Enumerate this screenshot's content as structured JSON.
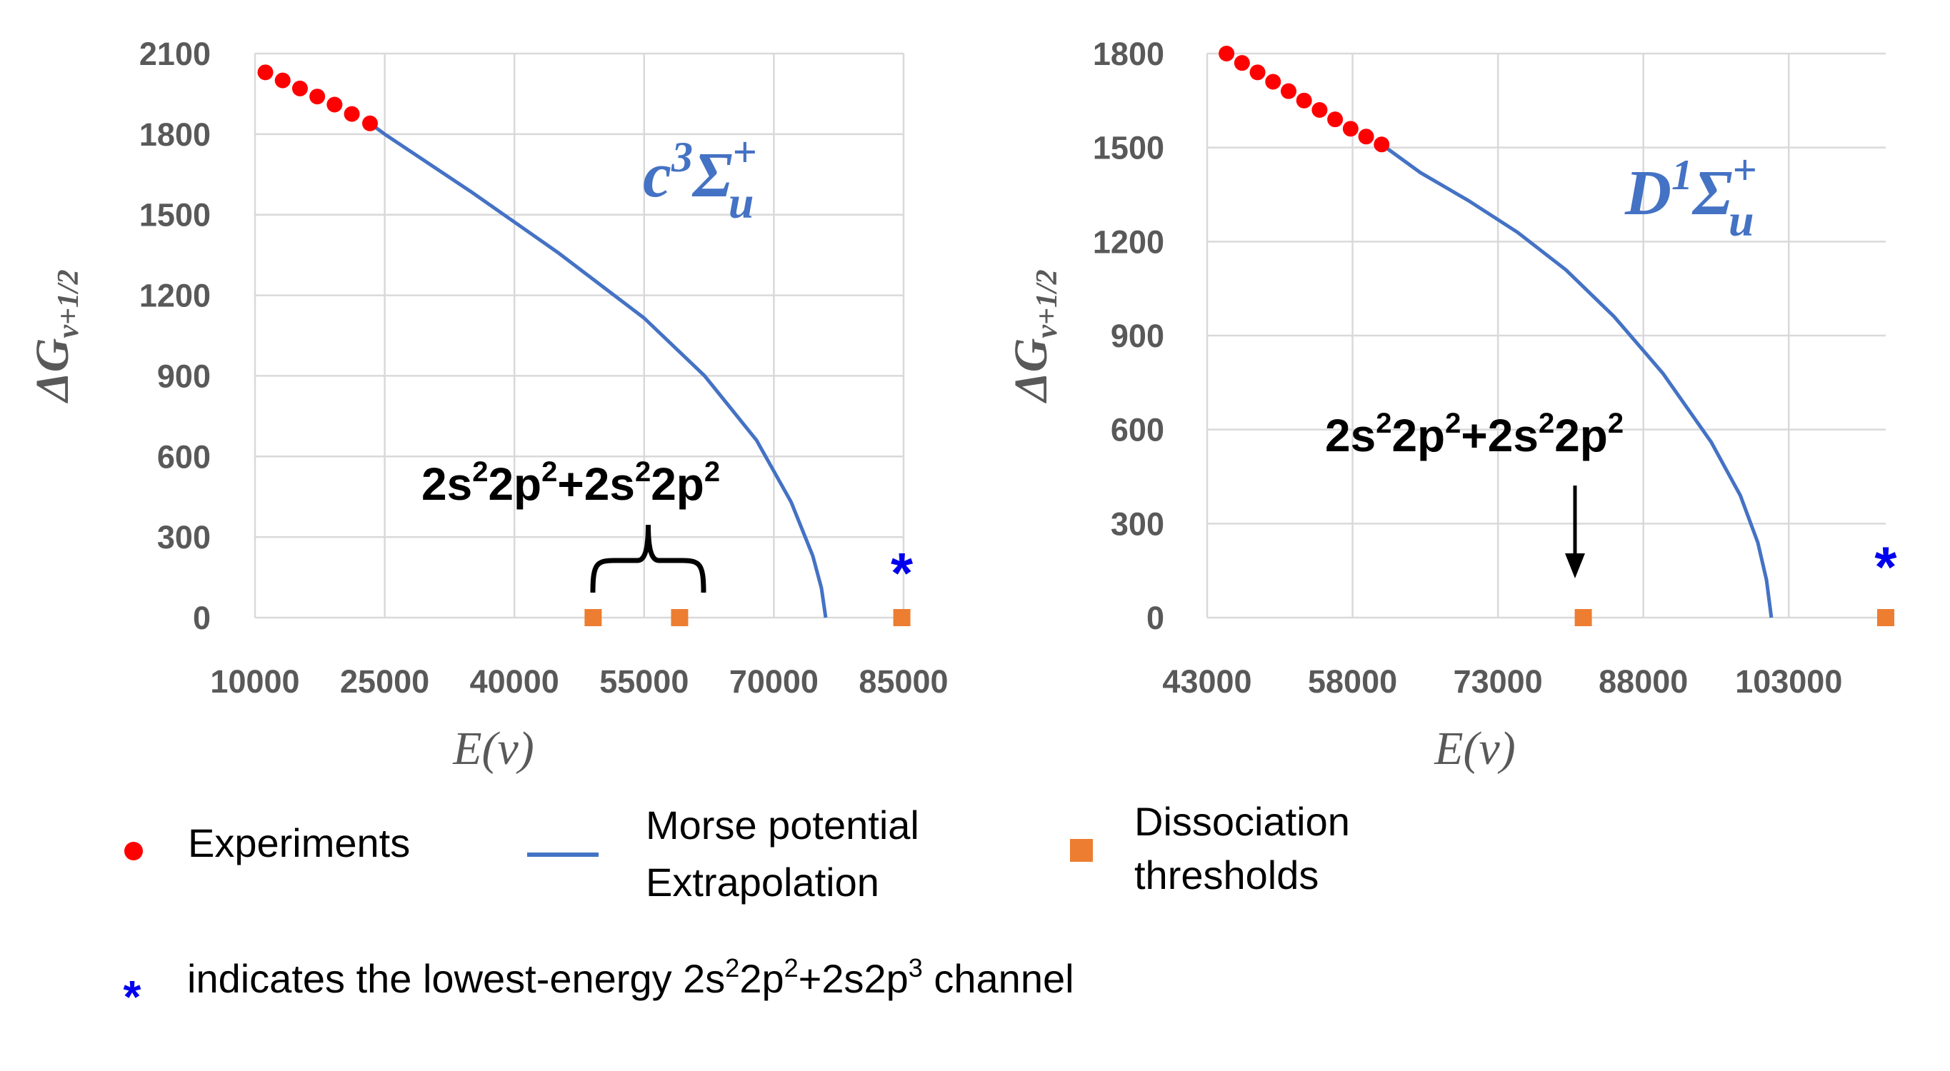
{
  "colors": {
    "experiments": "#ff0000",
    "morse": "#4472c4",
    "threshold": "#ed7d31",
    "star": "#0000ee",
    "grid": "#d9d9d9",
    "tick": "#595959"
  },
  "chart_data": [
    {
      "type": "line",
      "state_label": {
        "letter": "c",
        "sup": "3",
        "sigma": "Σ",
        "plus": "+",
        "sub": "u"
      },
      "xlabel": "E(v)",
      "ylabel": {
        "main": "ΔG",
        "sub": "v+1/2"
      },
      "xlim": [
        10000,
        85000
      ],
      "ylim": [
        0,
        2100
      ],
      "xticks": [
        "10000",
        "25000",
        "40000",
        "55000",
        "70000",
        "85000"
      ],
      "yticks": [
        "0",
        "300",
        "600",
        "900",
        "1200",
        "1500",
        "1800",
        "2100"
      ],
      "grid": true,
      "series": [
        {
          "name": "Experiments",
          "kind": "scatter",
          "x": [
            11200,
            13200,
            15200,
            17200,
            19200,
            21200,
            23300
          ],
          "y": [
            2030,
            2000,
            1970,
            1940,
            1910,
            1875,
            1840
          ]
        },
        {
          "name": "Morse potential Extrapolation",
          "kind": "line",
          "x": [
            23300,
            25000,
            35000,
            45000,
            55000,
            62000,
            68000,
            72000,
            74500,
            75500,
            76000
          ],
          "y": [
            1840,
            1800,
            1585,
            1360,
            1115,
            900,
            660,
            430,
            230,
            110,
            0
          ]
        },
        {
          "name": "Dissociation thresholds",
          "kind": "marker",
          "x": [
            49100,
            59100,
            84800
          ],
          "y": [
            0,
            0,
            0
          ]
        }
      ],
      "annotation": {
        "text_parts": [
          "2s",
          "2",
          "2p",
          "2",
          "+2s",
          "2",
          "2p",
          "2"
        ],
        "pointer": "brace"
      },
      "star": {
        "x": 84800,
        "y": 200,
        "text": "*"
      }
    },
    {
      "type": "line",
      "state_label": {
        "letter": "D",
        "sup": "1",
        "sigma": "Σ",
        "plus": "+",
        "sub": "u"
      },
      "xlabel": "E(v)",
      "ylabel": {
        "main": "ΔG",
        "sub": "v+1/2"
      },
      "xlim": [
        43000,
        113000
      ],
      "ylim": [
        0,
        1800
      ],
      "xticks": [
        "43000",
        "58000",
        "73000",
        "88000",
        "103000"
      ],
      "yticks": [
        "0",
        "300",
        "600",
        "900",
        "1200",
        "1500",
        "1800"
      ],
      "grid": true,
      "series": [
        {
          "name": "Experiments",
          "kind": "scatter",
          "x": [
            45000,
            46600,
            48200,
            49800,
            51400,
            53000,
            54600,
            56200,
            57800,
            59400,
            61000
          ],
          "y": [
            1800,
            1770,
            1740,
            1710,
            1680,
            1650,
            1620,
            1590,
            1560,
            1535,
            1510
          ]
        },
        {
          "name": "Morse potential Extrapolation",
          "kind": "line",
          "x": [
            61000,
            65000,
            70000,
            75000,
            80000,
            85000,
            90000,
            95000,
            98000,
            99800,
            100700,
            101200
          ],
          "y": [
            1510,
            1420,
            1330,
            1230,
            1110,
            960,
            780,
            560,
            390,
            240,
            120,
            0
          ]
        },
        {
          "name": "Dissociation thresholds",
          "kind": "marker",
          "x": [
            81800,
            113000
          ],
          "y": [
            0,
            0
          ]
        }
      ],
      "annotation": {
        "text_parts": [
          "2s",
          "2",
          "2p",
          "2",
          "+2s",
          "2",
          "2p",
          "2"
        ],
        "pointer": "arrow"
      },
      "star": {
        "x": 113000,
        "y": 190,
        "text": "*"
      }
    }
  ],
  "legend": {
    "experiments_label": "Experiments",
    "morse_label_line1": "Morse potential",
    "morse_label_line2": "Extrapolation",
    "threshold_label_line1": "Dissociation",
    "threshold_label_line2": "thresholds",
    "star_symbol": "*",
    "note_parts": [
      "indicates the lowest-energy 2s",
      "2",
      "2p",
      "2",
      "+2s2p",
      "3",
      " channel"
    ]
  }
}
